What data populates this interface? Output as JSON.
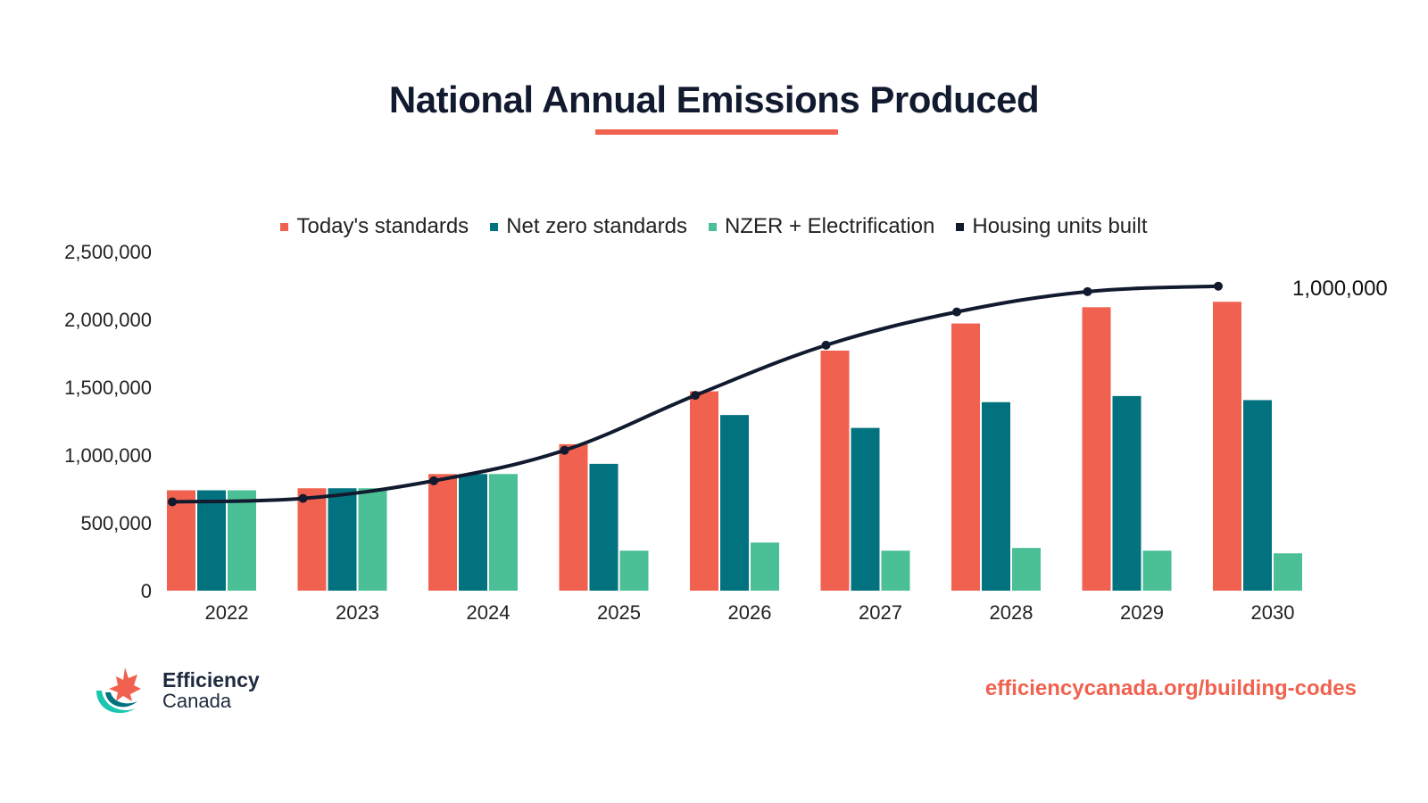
{
  "header": {
    "title": "National Annual Emissions Produced"
  },
  "footer": {
    "logo_line1": "Efficiency",
    "logo_line2": "Canada",
    "url": "efficiencycanada.org/building-codes"
  },
  "colors": {
    "today": "#f0624f",
    "netzero": "#02727f",
    "nzer": "#4bbf96",
    "housing": "#111a2e",
    "accent": "#f0624f"
  },
  "chart_data": {
    "type": "bar",
    "title": "National Annual Emissions Produced",
    "xlabel": "",
    "ylabel": "",
    "ylim": [
      0,
      2500000
    ],
    "yticks": [
      "0",
      "500,000",
      "1,000,000",
      "1,500,000",
      "2,000,000",
      "2,500,000"
    ],
    "grid": false,
    "legend_position": "top-center",
    "categories": [
      "2022",
      "2023",
      "2024",
      "2025",
      "2026",
      "2027",
      "2028",
      "2029",
      "2030"
    ],
    "series": [
      {
        "name": "Today's standards",
        "values": [
          740000,
          755000,
          860000,
          1080000,
          1470000,
          1770000,
          1970000,
          2090000,
          2130000
        ]
      },
      {
        "name": "Net zero standards",
        "values": [
          740000,
          755000,
          860000,
          935000,
          1295000,
          1200000,
          1390000,
          1435000,
          1405000
        ]
      },
      {
        "name": "NZER + Electrification",
        "values": [
          740000,
          755000,
          860000,
          295000,
          355000,
          295000,
          315000,
          295000,
          275000
        ]
      }
    ],
    "line_series": {
      "name": "Housing units built",
      "values": [
        655000,
        680000,
        810000,
        1035000,
        1440000,
        1810000,
        2055000,
        2205000,
        2245000
      ]
    },
    "annotation": "1,000,000"
  }
}
